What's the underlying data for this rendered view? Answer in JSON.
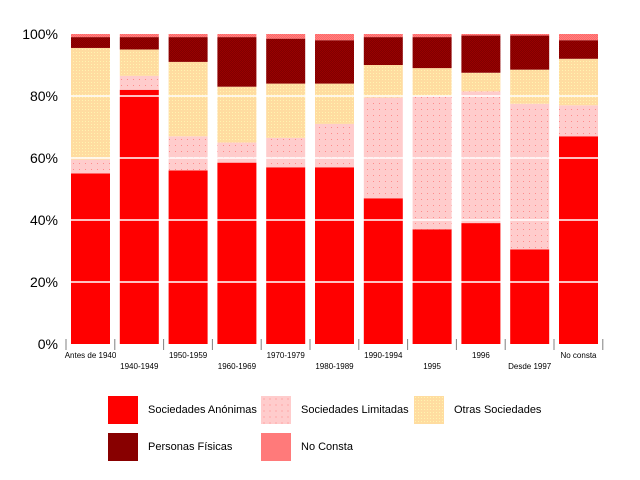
{
  "chart_data": {
    "type": "bar",
    "stacked": true,
    "normalized": true,
    "title": "",
    "xlabel": "",
    "ylabel": "",
    "ylim": [
      0,
      100
    ],
    "yticks": [
      "0%",
      "20%",
      "40%",
      "60%",
      "80%",
      "100%"
    ],
    "ytick_values": [
      0,
      20,
      40,
      60,
      80,
      100
    ],
    "grid": true,
    "legend_position": "bottom",
    "categories": [
      "Antes de 1940",
      "1940-1949",
      "1950-1959",
      "1960-1969",
      "1970-1979",
      "1980-1989",
      "1990-1994",
      "1995",
      "1996",
      "Desde 1997",
      "No consta"
    ],
    "series": [
      {
        "name": "Sociedades Anónimas",
        "color": "#ff0000",
        "pattern": "solid",
        "values": [
          55,
          82,
          56,
          58.5,
          57,
          57,
          47,
          37,
          39,
          30.5,
          67
        ]
      },
      {
        "name": "Sociedades Limitadas",
        "color": "#ffcccc",
        "pattern": "dots",
        "values": [
          4.5,
          4.5,
          11,
          6.5,
          9.5,
          14,
          32.5,
          43,
          42.5,
          47,
          10
        ]
      },
      {
        "name": "Otras Sociedades",
        "color": "#ffe0a0",
        "pattern": "grid",
        "values": [
          36,
          8.5,
          24,
          18,
          17.5,
          13,
          10.5,
          9,
          6,
          11,
          15
        ]
      },
      {
        "name": "Personas Físicas",
        "color": "#800000",
        "pattern": "checker",
        "values": [
          3.5,
          4,
          8,
          16,
          14.5,
          14,
          9,
          10,
          12,
          11,
          6
        ]
      },
      {
        "name": "No Consta",
        "color": "#ff8080",
        "pattern": "checker-light",
        "values": [
          1,
          1,
          1,
          1,
          1.5,
          2,
          1,
          1,
          0.5,
          0.5,
          2
        ]
      }
    ]
  },
  "legend": {
    "items": [
      {
        "label": "Sociedades Anónimas"
      },
      {
        "label": "Sociedades Limitadas"
      },
      {
        "label": "Otras Sociedades"
      },
      {
        "label": "Personas Físicas"
      },
      {
        "label": "No Consta"
      }
    ]
  }
}
